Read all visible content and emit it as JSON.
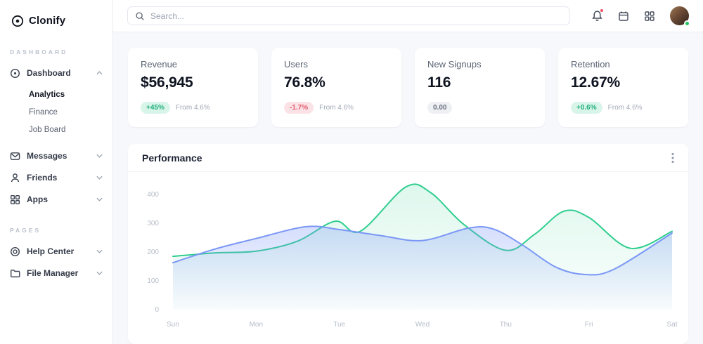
{
  "brand": {
    "name": "Clonify"
  },
  "topbar": {
    "search_placeholder": "Search...",
    "icons": {
      "search": "magnifier",
      "notifications": "bell-with-red-dot",
      "calendar": "calendar",
      "apps": "grid-2x2",
      "user": "avatar-photo-with-green-presence-dot"
    },
    "notification_dot_color": "#f4516c",
    "presence_color": "#22c55e"
  },
  "sidebar": {
    "sections": [
      {
        "label": "DASHBOARD",
        "items": [
          {
            "label": "Dashboard",
            "icon": "target-icon",
            "expanded": true,
            "children": [
              "Analytics",
              "Finance",
              "Job Board"
            ]
          },
          {
            "label": "Messages",
            "icon": "envelope-icon"
          },
          {
            "label": "Friends",
            "icon": "person-icon"
          },
          {
            "label": "Apps",
            "icon": "grid-icon"
          }
        ]
      },
      {
        "label": "PAGES",
        "items": [
          {
            "label": "Help Center",
            "icon": "lifebuoy-icon"
          },
          {
            "label": "File Manager",
            "icon": "folder-icon"
          }
        ]
      }
    ]
  },
  "stats": [
    {
      "title": "Revenue",
      "value": "$56,945",
      "badge": "+45%",
      "badge_type": "positive",
      "note": "From 4.6%"
    },
    {
      "title": "Users",
      "value": "76.8%",
      "badge": "-1.7%",
      "badge_type": "negative",
      "note": "From 4.6%"
    },
    {
      "title": "New Signups",
      "value": "116",
      "badge": "0.00",
      "badge_type": "neutral",
      "note": ""
    },
    {
      "title": "Retention",
      "value": "12.67%",
      "badge": "+0.6%",
      "badge_type": "positive",
      "note": "From 4.6%"
    }
  ],
  "chart_data": {
    "type": "area",
    "title": "Performance",
    "x_ticks": [
      "Sun",
      "Mon",
      "Tue",
      "Wed",
      "Thu",
      "Fri",
      "Sat"
    ],
    "y_ticks": [
      0,
      100,
      200,
      300,
      400
    ],
    "ylim": [
      0,
      450
    ],
    "grid": false,
    "legend": "none",
    "series": [
      {
        "name": "series-green",
        "color": "#2fce8f",
        "fill_opacity_top": 0.16,
        "points": [
          [
            0,
            185
          ],
          [
            0.5,
            197
          ],
          [
            1,
            203
          ],
          [
            1.5,
            238
          ],
          [
            1.95,
            307
          ],
          [
            2.25,
            272
          ],
          [
            2.8,
            426
          ],
          [
            3.1,
            406
          ],
          [
            3.5,
            295
          ],
          [
            4,
            206
          ],
          [
            4.35,
            262
          ],
          [
            4.7,
            342
          ],
          [
            5,
            320
          ],
          [
            5.5,
            213
          ],
          [
            6,
            272
          ]
        ]
      },
      {
        "name": "series-blue",
        "color": "#7b97f6",
        "fill_opacity_top": 0.32,
        "points": [
          [
            0,
            163
          ],
          [
            0.5,
            210
          ],
          [
            1,
            247
          ],
          [
            1.6,
            288
          ],
          [
            2,
            278
          ],
          [
            2.5,
            257
          ],
          [
            3,
            240
          ],
          [
            3.55,
            283
          ],
          [
            3.85,
            280
          ],
          [
            4.2,
            225
          ],
          [
            4.6,
            148
          ],
          [
            4.95,
            122
          ],
          [
            5.3,
            140
          ],
          [
            6,
            266
          ]
        ]
      }
    ]
  }
}
